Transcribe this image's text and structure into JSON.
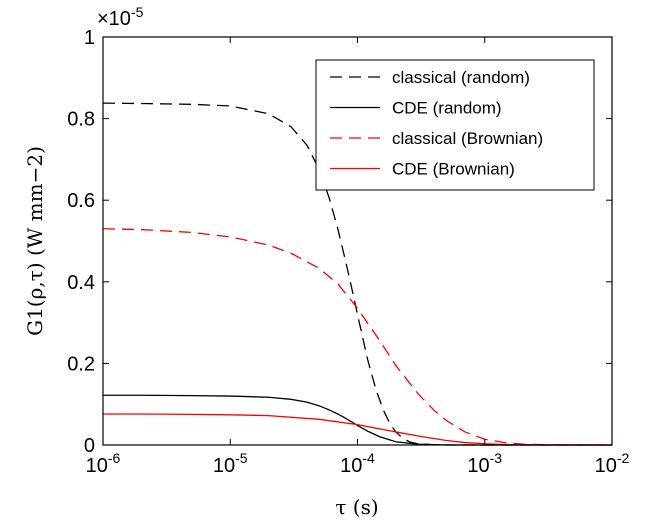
{
  "chart_data": {
    "type": "line",
    "x_scale": "log",
    "xlim": [
      1e-06,
      0.01
    ],
    "ylim": [
      0,
      1
    ],
    "y_multiplier_label": "×10",
    "y_multiplier_exponent": "-5",
    "xlabel": "τ (s)",
    "ylabel": "G1(ρ,τ) (W mm−2)",
    "x_ticks": [
      {
        "value": 1e-06,
        "base": "10",
        "exp": "-6"
      },
      {
        "value": 1e-05,
        "base": "10",
        "exp": "-5"
      },
      {
        "value": 0.0001,
        "base": "10",
        "exp": "-4"
      },
      {
        "value": 0.001,
        "base": "10",
        "exp": "-3"
      },
      {
        "value": 0.01,
        "base": "10",
        "exp": "-2"
      }
    ],
    "y_ticks": [
      {
        "value": 0,
        "label": "0"
      },
      {
        "value": 0.2,
        "label": "0.2"
      },
      {
        "value": 0.4,
        "label": "0.4"
      },
      {
        "value": 0.6,
        "label": "0.6"
      },
      {
        "value": 0.8,
        "label": "0.8"
      },
      {
        "value": 1,
        "label": "1"
      }
    ],
    "grid": false,
    "legend_position": "top-right",
    "series": [
      {
        "name": "classical (random)",
        "color": "#000000",
        "dash": "dashed",
        "x": [
          1e-06,
          2e-06,
          5e-06,
          1e-05,
          2e-05,
          3e-05,
          4e-05,
          5e-05,
          6e-05,
          7e-05,
          8e-05,
          9e-05,
          0.0001,
          0.00012,
          0.00014,
          0.00016,
          0.00018,
          0.0002,
          0.00023,
          0.00026,
          0.0003,
          0.0004,
          0.0006,
          0.001,
          0.01
        ],
        "y": [
          0.838,
          0.837,
          0.835,
          0.831,
          0.812,
          0.78,
          0.735,
          0.675,
          0.605,
          0.53,
          0.455,
          0.385,
          0.32,
          0.21,
          0.135,
          0.085,
          0.052,
          0.032,
          0.015,
          0.007,
          0.003,
          0.0005,
          0.0,
          0.0,
          0.0
        ]
      },
      {
        "name": "CDE (random)",
        "color": "#000000",
        "dash": "solid",
        "x": [
          1e-06,
          2e-06,
          5e-06,
          1e-05,
          2e-05,
          3e-05,
          4e-05,
          5e-05,
          6e-05,
          7e-05,
          8e-05,
          0.0001,
          0.00012,
          0.00015,
          0.0002,
          0.0003,
          0.0005,
          0.001,
          0.01
        ],
        "y": [
          0.122,
          0.122,
          0.121,
          0.12,
          0.117,
          0.112,
          0.105,
          0.096,
          0.086,
          0.076,
          0.066,
          0.048,
          0.034,
          0.02,
          0.008,
          0.002,
          0.0,
          0.0,
          0.0
        ]
      },
      {
        "name": "classical (Brownian)",
        "color": "#ff0000",
        "dash": "dashed",
        "x": [
          1e-06,
          2e-06,
          5e-06,
          1e-05,
          2e-05,
          3e-05,
          5e-05,
          7e-05,
          0.0001,
          0.00015,
          0.0002,
          0.0003,
          0.0004,
          0.0005,
          0.0007,
          0.001,
          0.0015,
          0.002,
          0.003,
          0.01
        ],
        "y": [
          0.53,
          0.528,
          0.521,
          0.51,
          0.49,
          0.47,
          0.433,
          0.395,
          0.335,
          0.255,
          0.195,
          0.125,
          0.085,
          0.06,
          0.032,
          0.014,
          0.005,
          0.002,
          0.0005,
          0.0
        ]
      },
      {
        "name": "CDE (Brownian)",
        "color": "#ff0000",
        "dash": "solid",
        "x": [
          1e-06,
          2e-06,
          5e-06,
          1e-05,
          2e-05,
          5e-05,
          0.0001,
          0.0002,
          0.0003,
          0.0005,
          0.0007,
          0.001,
          0.0015,
          0.002,
          0.003,
          0.01
        ],
        "y": [
          0.076,
          0.076,
          0.075,
          0.074,
          0.072,
          0.063,
          0.05,
          0.032,
          0.022,
          0.011,
          0.006,
          0.003,
          0.001,
          0.0005,
          0.0,
          0.0
        ]
      }
    ]
  }
}
